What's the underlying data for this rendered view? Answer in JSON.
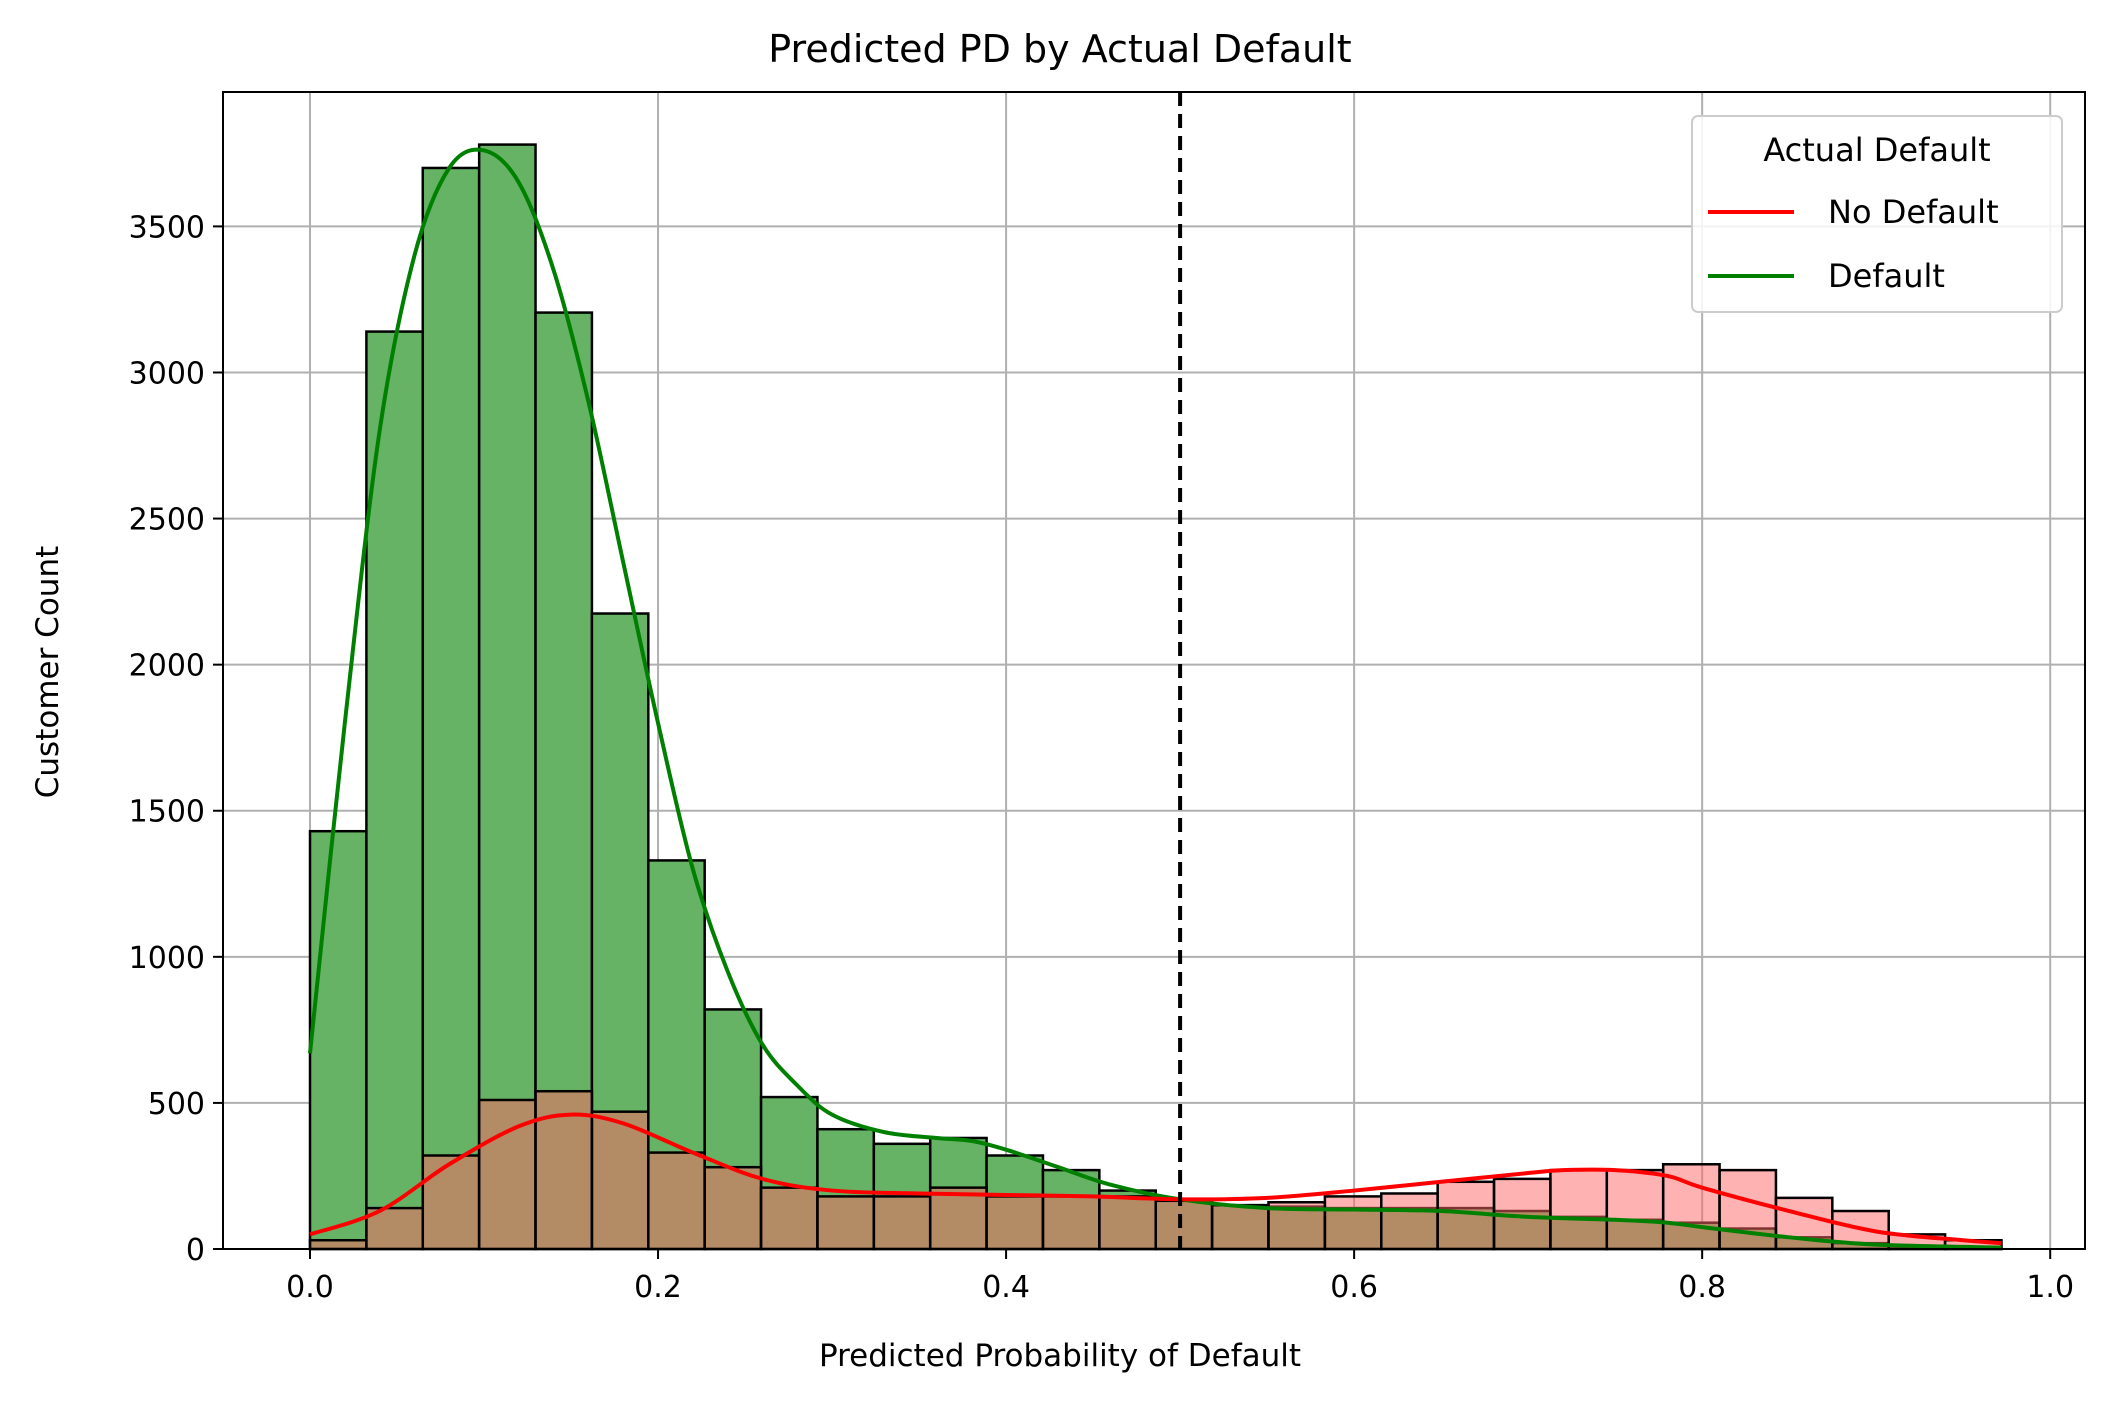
{
  "chart_data": {
    "type": "histogram",
    "title": "Predicted PD by Actual Default",
    "xlabel": "Predicted Probability of Default",
    "ylabel": "Customer Count",
    "xlim": [
      -0.05,
      1.02
    ],
    "ylim": [
      0,
      3960
    ],
    "xticks": [
      0.0,
      0.2,
      0.4,
      0.6,
      0.8,
      1.0
    ],
    "xtick_labels": [
      "0.0",
      "0.2",
      "0.4",
      "0.6",
      "0.8",
      "1.0"
    ],
    "yticks": [
      0,
      500,
      1000,
      1500,
      2000,
      2500,
      3000,
      3500
    ],
    "ytick_labels": [
      "0",
      "500",
      "1000",
      "1500",
      "2000",
      "2500",
      "3000",
      "3500"
    ],
    "grid": true,
    "threshold": 0.5,
    "bin_edges": [
      0.0,
      0.0324,
      0.0648,
      0.0972,
      0.1296,
      0.162,
      0.1944,
      0.2268,
      0.2592,
      0.2916,
      0.324,
      0.3564,
      0.3888,
      0.4212,
      0.4536,
      0.486,
      0.5184,
      0.5508,
      0.5832,
      0.6156,
      0.648,
      0.6804,
      0.7128,
      0.7452,
      0.7776,
      0.81,
      0.8424,
      0.8748,
      0.9072,
      0.9396,
      0.972
    ],
    "series": [
      {
        "name": "Default",
        "color": "#008000",
        "fill": "#66b366",
        "counts": [
          1430,
          3140,
          3700,
          3780,
          3205,
          2175,
          1330,
          820,
          520,
          410,
          360,
          380,
          320,
          270,
          200,
          165,
          150,
          145,
          140,
          140,
          140,
          130,
          110,
          100,
          90,
          70,
          40,
          20,
          10,
          5
        ],
        "kde": [
          [
            0.0,
            670
          ],
          [
            0.02,
            1800
          ],
          [
            0.04,
            2800
          ],
          [
            0.06,
            3400
          ],
          [
            0.08,
            3700
          ],
          [
            0.1,
            3760
          ],
          [
            0.12,
            3650
          ],
          [
            0.14,
            3350
          ],
          [
            0.16,
            2900
          ],
          [
            0.18,
            2350
          ],
          [
            0.2,
            1800
          ],
          [
            0.22,
            1300
          ],
          [
            0.24,
            950
          ],
          [
            0.26,
            700
          ],
          [
            0.28,
            560
          ],
          [
            0.3,
            460
          ],
          [
            0.33,
            400
          ],
          [
            0.36,
            380
          ],
          [
            0.38,
            370
          ],
          [
            0.4,
            340
          ],
          [
            0.43,
            280
          ],
          [
            0.46,
            220
          ],
          [
            0.5,
            170
          ],
          [
            0.55,
            140
          ],
          [
            0.6,
            135
          ],
          [
            0.65,
            130
          ],
          [
            0.7,
            110
          ],
          [
            0.75,
            100
          ],
          [
            0.78,
            90
          ],
          [
            0.8,
            75
          ],
          [
            0.85,
            40
          ],
          [
            0.9,
            15
          ],
          [
            0.972,
            5
          ]
        ]
      },
      {
        "name": "No Default",
        "color": "#ff0000",
        "fill": "#ff6666",
        "counts": [
          30,
          140,
          320,
          510,
          540,
          470,
          330,
          280,
          210,
          180,
          180,
          210,
          180,
          180,
          180,
          165,
          150,
          160,
          180,
          190,
          230,
          240,
          270,
          270,
          290,
          270,
          175,
          130,
          50,
          30
        ],
        "kde": [
          [
            0.0,
            50
          ],
          [
            0.04,
            130
          ],
          [
            0.08,
            290
          ],
          [
            0.12,
            420
          ],
          [
            0.15,
            460
          ],
          [
            0.18,
            430
          ],
          [
            0.22,
            330
          ],
          [
            0.26,
            240
          ],
          [
            0.3,
            200
          ],
          [
            0.35,
            190
          ],
          [
            0.4,
            185
          ],
          [
            0.45,
            180
          ],
          [
            0.5,
            170
          ],
          [
            0.55,
            175
          ],
          [
            0.6,
            200
          ],
          [
            0.65,
            230
          ],
          [
            0.7,
            260
          ],
          [
            0.72,
            270
          ],
          [
            0.75,
            270
          ],
          [
            0.78,
            250
          ],
          [
            0.8,
            210
          ],
          [
            0.85,
            130
          ],
          [
            0.9,
            60
          ],
          [
            0.95,
            30
          ],
          [
            0.972,
            20
          ]
        ]
      }
    ],
    "legend": {
      "title": "Actual Default",
      "entries": [
        "No Default",
        "Default"
      ],
      "placement": "top-right"
    }
  }
}
